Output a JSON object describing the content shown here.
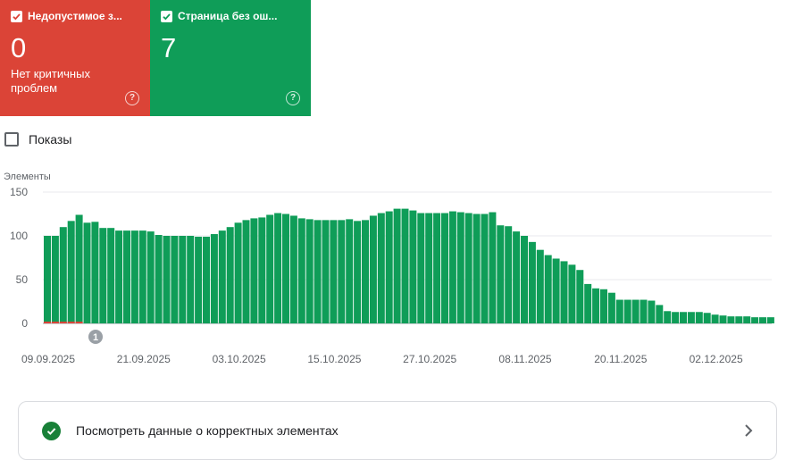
{
  "cards": {
    "invalid": {
      "title": "Недопустимое з...",
      "value": "0",
      "subtitle": "Нет критичных проблем",
      "color": "#db4437"
    },
    "valid": {
      "title": "Страница без ош...",
      "value": "7",
      "color": "#0f9d58"
    }
  },
  "impressions_label": "Показы",
  "chart_data": {
    "type": "bar",
    "ylabel": "Элементы",
    "ylim": [
      0,
      150
    ],
    "yticks": [
      0,
      50,
      100,
      150
    ],
    "x_tick_labels": [
      "09.09.2025",
      "21.09.2025",
      "03.10.2025",
      "15.10.2025",
      "27.10.2025",
      "08.11.2025",
      "20.11.2025",
      "02.12.2025"
    ],
    "series": [
      {
        "color": "#0f9d58",
        "values": [
          100,
          100,
          110,
          117,
          124,
          115,
          116,
          109,
          109,
          106,
          106,
          106,
          106,
          105,
          101,
          100,
          100,
          100,
          100,
          99,
          99,
          102,
          106,
          110,
          115,
          118,
          120,
          121,
          124,
          126,
          125,
          123,
          120,
          119,
          118,
          118,
          118,
          118,
          119,
          117,
          118,
          123,
          126,
          128,
          131,
          131,
          129,
          126,
          126,
          126,
          126,
          128,
          127,
          126,
          125,
          125,
          127,
          112,
          111,
          105,
          100,
          93,
          84,
          78,
          74,
          71,
          67,
          61,
          45,
          40,
          39,
          35,
          27,
          27,
          27,
          27,
          26,
          21,
          14,
          13,
          13,
          13,
          13,
          12,
          10,
          9,
          8,
          8,
          8,
          7,
          7,
          7
        ]
      },
      {
        "color": "#db4437",
        "values": [
          2,
          2,
          2,
          2,
          2,
          0,
          0,
          0,
          0,
          0,
          0,
          0,
          0,
          0,
          0,
          0,
          0,
          0,
          0,
          0,
          0,
          0,
          0,
          0,
          0,
          0,
          0,
          0,
          0,
          0,
          0,
          0,
          0,
          0,
          0,
          0,
          0,
          0,
          0,
          0,
          0,
          0,
          0,
          0,
          0,
          0,
          0,
          0,
          0,
          0,
          0,
          0,
          0,
          0,
          0,
          0,
          0,
          0,
          0,
          0,
          0,
          0,
          0,
          0,
          0,
          0,
          0,
          0,
          0,
          0,
          0,
          0,
          0,
          0,
          0,
          0,
          0,
          0,
          0,
          0,
          0,
          0,
          0,
          0,
          0,
          0,
          0,
          0,
          0,
          0,
          0,
          0
        ]
      }
    ],
    "annotation": "1",
    "grid": true
  },
  "view_link": {
    "label": "Посмотреть данные о корректных элементах"
  }
}
